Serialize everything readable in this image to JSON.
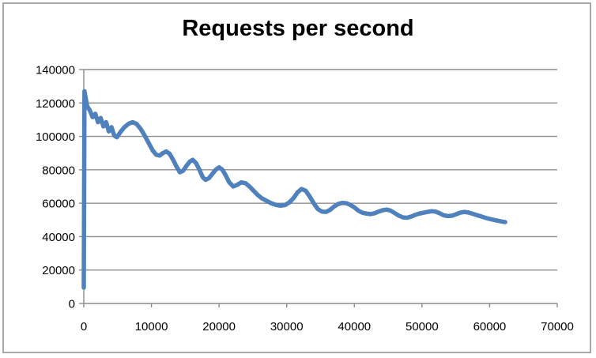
{
  "title": "Requests per second",
  "frame": {
    "background": "#ffffff",
    "border_color": "#a8a8a8"
  },
  "chart_data": {
    "type": "line",
    "title": "Requests per second",
    "xlabel": "",
    "ylabel": "",
    "xlim": [
      0,
      70000
    ],
    "ylim": [
      0,
      140000
    ],
    "xticks": [
      0,
      10000,
      20000,
      30000,
      40000,
      50000,
      60000,
      70000
    ],
    "yticks": [
      0,
      20000,
      40000,
      60000,
      80000,
      100000,
      120000,
      140000
    ],
    "grid": "horizontal",
    "legend": "none",
    "grid_color": "#8b8b8b",
    "axis_color": "#8b8b8b",
    "text_color": "#000000",
    "series": [
      {
        "name": "Requests per second",
        "color": "#4f81bd",
        "stroke_width": 5.5,
        "points": [
          [
            0,
            9500
          ],
          [
            100,
            127000
          ],
          [
            500,
            118000
          ],
          [
            900,
            115500
          ],
          [
            1300,
            111500
          ],
          [
            1700,
            113500
          ],
          [
            2100,
            108500
          ],
          [
            2500,
            111000
          ],
          [
            2900,
            106000
          ],
          [
            3300,
            108500
          ],
          [
            3700,
            103000
          ],
          [
            4100,
            105500
          ],
          [
            4500,
            100500
          ],
          [
            4900,
            99500
          ],
          [
            5400,
            102500
          ],
          [
            6000,
            105500
          ],
          [
            6600,
            107500
          ],
          [
            7200,
            108500
          ],
          [
            7800,
            107500
          ],
          [
            8400,
            104500
          ],
          [
            9000,
            100500
          ],
          [
            9600,
            96000
          ],
          [
            10200,
            91500
          ],
          [
            10700,
            89000
          ],
          [
            11200,
            88500
          ],
          [
            11700,
            90000
          ],
          [
            12200,
            91000
          ],
          [
            12700,
            89500
          ],
          [
            13200,
            86000
          ],
          [
            13700,
            82000
          ],
          [
            14200,
            78500
          ],
          [
            14700,
            79500
          ],
          [
            15200,
            82500
          ],
          [
            15700,
            85000
          ],
          [
            16100,
            86000
          ],
          [
            16600,
            84000
          ],
          [
            17100,
            80000
          ],
          [
            17600,
            75500
          ],
          [
            18000,
            74000
          ],
          [
            18500,
            75000
          ],
          [
            19000,
            77500
          ],
          [
            19500,
            80000
          ],
          [
            20000,
            81500
          ],
          [
            20500,
            80000
          ],
          [
            21000,
            76500
          ],
          [
            21500,
            72500
          ],
          [
            22100,
            70000
          ],
          [
            22700,
            71000
          ],
          [
            23300,
            72500
          ],
          [
            23900,
            72000
          ],
          [
            24500,
            70000
          ],
          [
            25100,
            67500
          ],
          [
            25700,
            65000
          ],
          [
            26300,
            63000
          ],
          [
            27000,
            61500
          ],
          [
            27700,
            60000
          ],
          [
            28400,
            59000
          ],
          [
            29100,
            58500
          ],
          [
            29800,
            59000
          ],
          [
            30400,
            60500
          ],
          [
            31000,
            63000
          ],
          [
            31600,
            66500
          ],
          [
            32200,
            68500
          ],
          [
            32800,
            67500
          ],
          [
            33400,
            64000
          ],
          [
            34000,
            60000
          ],
          [
            34600,
            56500
          ],
          [
            35200,
            55000
          ],
          [
            35800,
            54800
          ],
          [
            36400,
            56000
          ],
          [
            37000,
            58000
          ],
          [
            37600,
            59500
          ],
          [
            38200,
            60200
          ],
          [
            38800,
            60000
          ],
          [
            39400,
            59000
          ],
          [
            40000,
            57500
          ],
          [
            40600,
            55500
          ],
          [
            41200,
            54300
          ],
          [
            41800,
            53800
          ],
          [
            42400,
            53500
          ],
          [
            43000,
            54000
          ],
          [
            43600,
            55000
          ],
          [
            44200,
            55800
          ],
          [
            44800,
            56200
          ],
          [
            45400,
            55500
          ],
          [
            46000,
            54000
          ],
          [
            46600,
            52500
          ],
          [
            47200,
            51500
          ],
          [
            47800,
            51300
          ],
          [
            48400,
            52000
          ],
          [
            49000,
            53000
          ],
          [
            49600,
            53800
          ],
          [
            50200,
            54300
          ],
          [
            50800,
            54800
          ],
          [
            51400,
            55200
          ],
          [
            52000,
            55000
          ],
          [
            52600,
            54000
          ],
          [
            53200,
            52800
          ],
          [
            53800,
            52300
          ],
          [
            54400,
            52500
          ],
          [
            55000,
            53300
          ],
          [
            55600,
            54300
          ],
          [
            56200,
            54800
          ],
          [
            56800,
            54500
          ],
          [
            57400,
            53800
          ],
          [
            58000,
            53000
          ],
          [
            58600,
            52300
          ],
          [
            59200,
            51500
          ],
          [
            59800,
            50800
          ],
          [
            60400,
            50200
          ],
          [
            61000,
            49700
          ],
          [
            61600,
            49200
          ],
          [
            62300,
            48700
          ]
        ]
      }
    ]
  }
}
